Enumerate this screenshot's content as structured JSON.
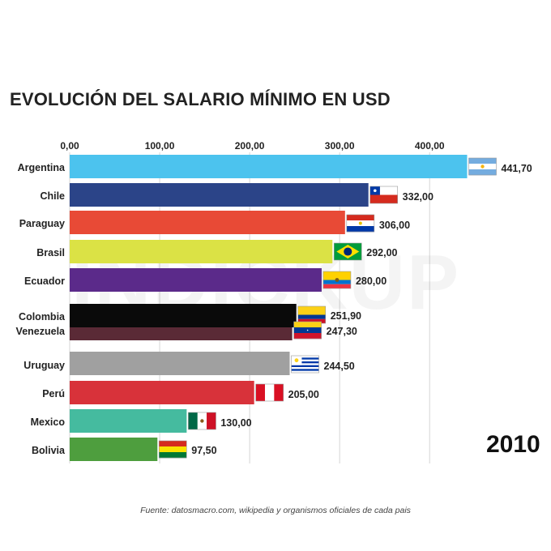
{
  "title": "EVOLUCIÓN DEL SALARIO MÍNIMO EN USD",
  "year": "2010",
  "watermark": "INDICKUP",
  "source": "Fuente: datosmacro.com, wikipedia y organismos oficiales de cada pais",
  "chart_data": {
    "type": "bar",
    "orientation": "horizontal",
    "title": "EVOLUCIÓN DEL SALARIO MÍNIMO EN USD",
    "xlim": [
      0,
      400
    ],
    "ticks": [
      0,
      100,
      200,
      300,
      400
    ],
    "tick_labels": [
      "0,00",
      "100,00",
      "200,00",
      "300,00",
      "400,00"
    ],
    "grid": true,
    "categories": [
      "Argentina",
      "Chile",
      "Paraguay",
      "Brasil",
      "Ecuador",
      "Colombia",
      "Venezuela",
      "Uruguay",
      "Perú",
      "Mexico",
      "Bolivia"
    ],
    "values": [
      441.7,
      332.0,
      306.0,
      292.0,
      280.0,
      251.9,
      247.3,
      244.5,
      205.0,
      130.0,
      97.5
    ],
    "value_labels": [
      "441,70",
      "332,00",
      "306,00",
      "292,00",
      "280,00",
      "251,90",
      "247,30",
      "244,50",
      "205,00",
      "130,00",
      "97,50"
    ],
    "colors": [
      "#4cc3ee",
      "#2b4488",
      "#e84a36",
      "#dbe245",
      "#5b2a8a",
      "#0a0a0a",
      "#5a2a36",
      "#a0a0a0",
      "#d8323a",
      "#45bb9f",
      "#4e9e3e"
    ],
    "flags": [
      "argentina-flag",
      "chile-flag",
      "paraguay-flag",
      "brasil-flag",
      "ecuador-flag",
      "colombia-flag",
      "venezuela-flag",
      "uruguay-flag",
      "peru-flag",
      "mexico-flag",
      "bolivia-flag"
    ]
  }
}
